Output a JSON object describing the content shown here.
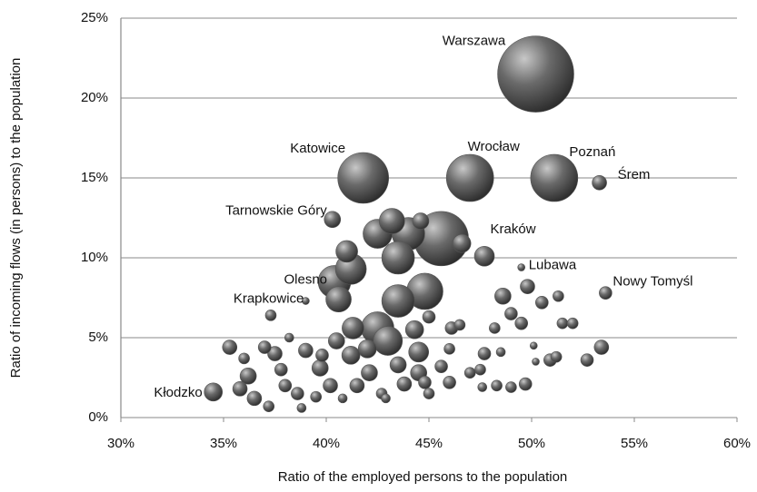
{
  "chart_data": {
    "type": "bubble",
    "x_label": "Ratio of the employed persons to the population",
    "y_label": "Ratio of incoming flows (in persons) to the population",
    "xlim": [
      30,
      60
    ],
    "xticks": [
      {
        "value": 30,
        "label": "30%"
      },
      {
        "value": 35,
        "label": "35%"
      },
      {
        "value": 40,
        "label": "40%"
      },
      {
        "value": 45,
        "label": "45%"
      },
      {
        "value": 50,
        "label": "50%"
      },
      {
        "value": 55,
        "label": "55%"
      },
      {
        "value": 60,
        "label": "60%"
      }
    ],
    "ylim": [
      0,
      25
    ],
    "yticks": [
      {
        "value": 0,
        "label": "0%"
      },
      {
        "value": 5,
        "label": "5%"
      },
      {
        "value": 10,
        "label": "10%"
      },
      {
        "value": 15,
        "label": "15%"
      },
      {
        "value": 20,
        "label": "20%"
      },
      {
        "value": 25,
        "label": "25%"
      }
    ],
    "grid": true,
    "color": "#555555",
    "points": [
      {
        "name": "Warszawa",
        "x": 50.2,
        "y": 21.5,
        "size": 1760
      },
      {
        "name": "Katowice",
        "x": 41.8,
        "y": 15.0,
        "size": 784
      },
      {
        "name": "Wrocław",
        "x": 47.0,
        "y": 15.0,
        "size": 676
      },
      {
        "name": "Poznań",
        "x": 51.1,
        "y": 15.0,
        "size": 676
      },
      {
        "name": "Śrem",
        "x": 53.3,
        "y": 14.7,
        "size": 64
      },
      {
        "name": "Tarnowskie Góry",
        "x": 40.3,
        "y": 12.4,
        "size": 81
      },
      {
        "name": "Kraków",
        "x": 45.6,
        "y": 11.2,
        "size": 900
      },
      {
        "name": "Lubawa",
        "x": 49.5,
        "y": 9.4,
        "size": 16
      },
      {
        "name": "Nowy Tomyśl",
        "x": 53.6,
        "y": 7.8,
        "size": 49
      },
      {
        "name": "Olesno",
        "x": 40.4,
        "y": 8.5,
        "size": 324
      },
      {
        "name": "Krapkowice",
        "x": 39.0,
        "y": 7.3,
        "size": 16
      },
      {
        "name": "Kłodzko",
        "x": 34.5,
        "y": 1.6,
        "size": 100
      },
      {
        "x": 43.2,
        "y": 12.3,
        "size": 196
      },
      {
        "x": 42.5,
        "y": 11.5,
        "size": 256
      },
      {
        "x": 44.0,
        "y": 11.5,
        "size": 324
      },
      {
        "x": 44.6,
        "y": 12.3,
        "size": 81
      },
      {
        "x": 43.5,
        "y": 10.0,
        "size": 324
      },
      {
        "x": 41.0,
        "y": 10.4,
        "size": 144
      },
      {
        "x": 41.2,
        "y": 9.3,
        "size": 289
      },
      {
        "x": 43.5,
        "y": 7.3,
        "size": 324
      },
      {
        "x": 44.8,
        "y": 7.9,
        "size": 400
      },
      {
        "x": 40.6,
        "y": 7.4,
        "size": 196
      },
      {
        "x": 41.3,
        "y": 5.6,
        "size": 144
      },
      {
        "x": 42.5,
        "y": 5.6,
        "size": 324
      },
      {
        "x": 43.0,
        "y": 4.8,
        "size": 256
      },
      {
        "x": 42.0,
        "y": 4.3,
        "size": 100
      },
      {
        "x": 44.3,
        "y": 5.5,
        "size": 100
      },
      {
        "x": 44.5,
        "y": 4.1,
        "size": 121
      },
      {
        "x": 43.5,
        "y": 3.3,
        "size": 81
      },
      {
        "x": 41.2,
        "y": 3.9,
        "size": 100
      },
      {
        "x": 42.1,
        "y": 2.8,
        "size": 81
      },
      {
        "x": 46.6,
        "y": 10.9,
        "size": 100
      },
      {
        "x": 47.7,
        "y": 10.1,
        "size": 121
      },
      {
        "x": 49.8,
        "y": 8.2,
        "size": 64
      },
      {
        "x": 50.5,
        "y": 7.2,
        "size": 49
      },
      {
        "x": 48.6,
        "y": 7.6,
        "size": 81
      },
      {
        "x": 49.0,
        "y": 6.5,
        "size": 49
      },
      {
        "x": 49.5,
        "y": 5.9,
        "size": 49
      },
      {
        "x": 48.2,
        "y": 5.6,
        "size": 36
      },
      {
        "x": 46.1,
        "y": 5.6,
        "size": 49
      },
      {
        "x": 47.7,
        "y": 4.0,
        "size": 49
      },
      {
        "x": 47.5,
        "y": 3.0,
        "size": 36
      },
      {
        "x": 45.6,
        "y": 3.2,
        "size": 49
      },
      {
        "x": 46.0,
        "y": 2.2,
        "size": 49
      },
      {
        "x": 47.0,
        "y": 2.8,
        "size": 36
      },
      {
        "x": 49.7,
        "y": 2.1,
        "size": 49
      },
      {
        "x": 49.0,
        "y": 1.9,
        "size": 36
      },
      {
        "x": 48.3,
        "y": 2.0,
        "size": 36
      },
      {
        "x": 47.6,
        "y": 1.9,
        "size": 25
      },
      {
        "x": 50.1,
        "y": 4.5,
        "size": 16
      },
      {
        "x": 50.9,
        "y": 3.6,
        "size": 49
      },
      {
        "x": 51.2,
        "y": 3.8,
        "size": 36
      },
      {
        "x": 52.7,
        "y": 3.6,
        "size": 49
      },
      {
        "x": 53.4,
        "y": 4.4,
        "size": 64
      },
      {
        "x": 51.5,
        "y": 5.9,
        "size": 36
      },
      {
        "x": 52.0,
        "y": 5.9,
        "size": 36
      },
      {
        "x": 51.3,
        "y": 7.6,
        "size": 36
      },
      {
        "x": 50.2,
        "y": 3.5,
        "size": 16
      },
      {
        "x": 35.3,
        "y": 4.4,
        "size": 64
      },
      {
        "x": 36.2,
        "y": 2.6,
        "size": 81
      },
      {
        "x": 36.5,
        "y": 1.2,
        "size": 64
      },
      {
        "x": 37.0,
        "y": 4.4,
        "size": 49
      },
      {
        "x": 37.3,
        "y": 6.4,
        "size": 36
      },
      {
        "x": 37.5,
        "y": 4.0,
        "size": 64
      },
      {
        "x": 37.8,
        "y": 3.0,
        "size": 49
      },
      {
        "x": 38.0,
        "y": 2.0,
        "size": 49
      },
      {
        "x": 37.2,
        "y": 0.7,
        "size": 36
      },
      {
        "x": 38.6,
        "y": 1.5,
        "size": 49
      },
      {
        "x": 39.0,
        "y": 4.2,
        "size": 64
      },
      {
        "x": 38.2,
        "y": 5.0,
        "size": 25
      },
      {
        "x": 39.7,
        "y": 3.1,
        "size": 81
      },
      {
        "x": 40.2,
        "y": 2.0,
        "size": 64
      },
      {
        "x": 40.5,
        "y": 4.8,
        "size": 81
      },
      {
        "x": 39.5,
        "y": 1.3,
        "size": 36
      },
      {
        "x": 36.0,
        "y": 3.7,
        "size": 36
      },
      {
        "x": 35.8,
        "y": 1.8,
        "size": 64
      },
      {
        "x": 41.5,
        "y": 2.0,
        "size": 64
      },
      {
        "x": 42.7,
        "y": 1.5,
        "size": 36
      },
      {
        "x": 43.8,
        "y": 2.1,
        "size": 64
      },
      {
        "x": 44.5,
        "y": 2.8,
        "size": 81
      },
      {
        "x": 45.0,
        "y": 1.5,
        "size": 36
      },
      {
        "x": 46.0,
        "y": 4.3,
        "size": 36
      },
      {
        "x": 45.0,
        "y": 6.3,
        "size": 49
      },
      {
        "x": 38.8,
        "y": 0.6,
        "size": 25
      },
      {
        "x": 39.8,
        "y": 3.9,
        "size": 49
      },
      {
        "x": 40.8,
        "y": 1.2,
        "size": 25
      },
      {
        "x": 42.9,
        "y": 1.2,
        "size": 25
      },
      {
        "x": 44.8,
        "y": 2.2,
        "size": 49
      },
      {
        "x": 46.5,
        "y": 5.8,
        "size": 36
      },
      {
        "x": 48.5,
        "y": 4.1,
        "size": 25
      }
    ]
  }
}
